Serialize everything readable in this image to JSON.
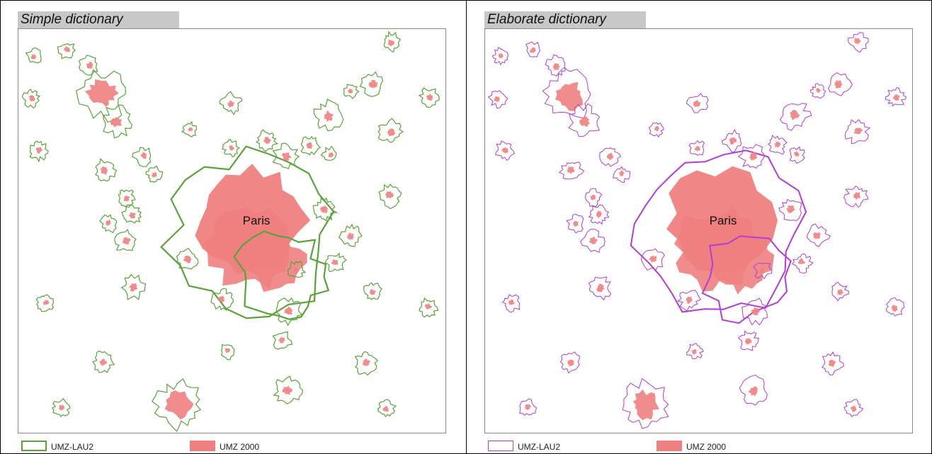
{
  "panels": [
    {
      "title": "Simple dictionary",
      "city_label": "Paris",
      "outline_color": "#5aa33a",
      "urban_color": "#f08080",
      "legend": {
        "boundary_label": "UMZ-LAU2",
        "urban_label": "UMZ 2000"
      }
    },
    {
      "title": "Elaborate dictionary",
      "city_label": "Paris",
      "outline_color": "#b23cd4",
      "urban_color": "#f08080",
      "legend": {
        "boundary_label": "UMZ-LAU2",
        "urban_label": "UMZ 2000"
      }
    }
  ]
}
